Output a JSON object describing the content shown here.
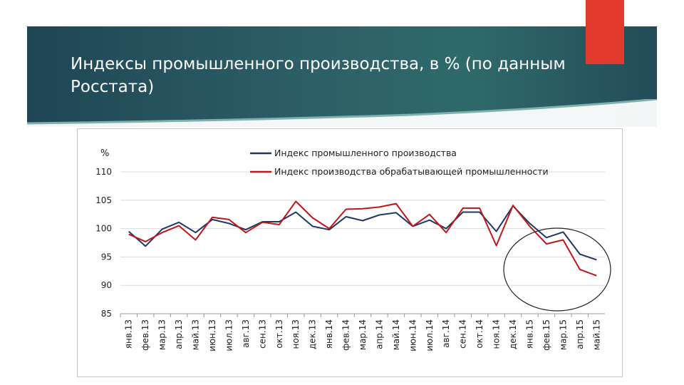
{
  "slide": {
    "title": "Индексы промышленного производства, в % (по данным Росстата)",
    "banner_color": "#2b5c63",
    "accent_color": "#e23b2e"
  },
  "chart_data": {
    "type": "line",
    "ylabel": "%",
    "ylim": [
      85,
      110
    ],
    "yticks": [
      85,
      90,
      95,
      100,
      105,
      110
    ],
    "grid": true,
    "legend_position": "top",
    "categories": [
      "янв.13",
      "фев.13",
      "мар.13",
      "апр.13",
      "май.13",
      "июн.13",
      "июл.13",
      "авг.13",
      "сен.13",
      "окт.13",
      "ноя.13",
      "дек.13",
      "янв.14",
      "фев.14",
      "мар.14",
      "апр.14",
      "май.14",
      "июн.14",
      "июл.14",
      "авг.14",
      "сен.14",
      "окт.14",
      "ноя.14",
      "дек.14",
      "янв.15",
      "фев.15",
      "мар.15",
      "апр.15",
      "май.15"
    ],
    "series": [
      {
        "name": "Индекс промышленного производства",
        "color": "#1f3864",
        "values": [
          99.5,
          96.9,
          99.9,
          101.1,
          99.3,
          101.6,
          100.9,
          99.8,
          101.2,
          101.2,
          102.9,
          100.4,
          99.8,
          102.1,
          101.4,
          102.4,
          102.8,
          100.4,
          101.5,
          100.0,
          102.9,
          102.9,
          99.5,
          104.0,
          100.9,
          98.4,
          99.4,
          95.5,
          94.5
        ]
      },
      {
        "name": "Индекс производства обрабатывающей промышленности",
        "color": "#c0161a",
        "values": [
          99.0,
          97.7,
          99.3,
          100.5,
          98.0,
          102.0,
          101.6,
          99.3,
          101.1,
          100.7,
          104.8,
          101.9,
          100.0,
          103.4,
          103.5,
          103.8,
          104.4,
          100.4,
          102.5,
          99.3,
          103.6,
          103.6,
          97.0,
          104.1,
          100.4,
          97.3,
          98.0,
          92.8,
          91.7
        ]
      }
    ]
  }
}
